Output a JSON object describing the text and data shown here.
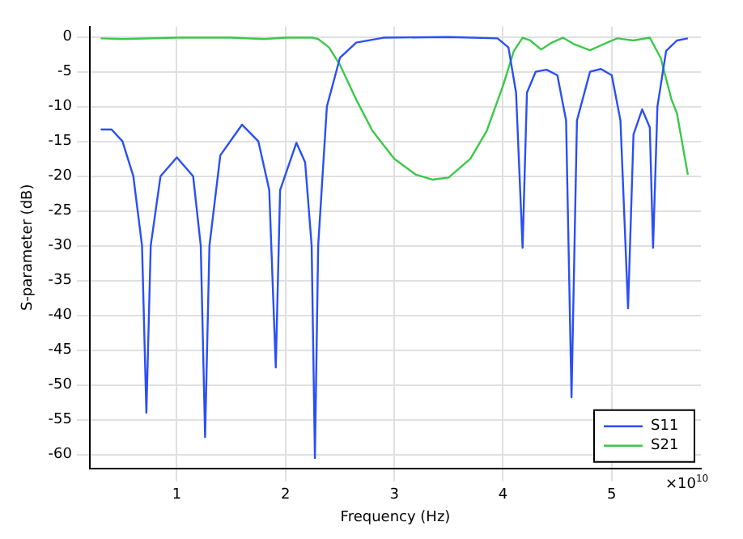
{
  "chart_data": {
    "type": "line",
    "xlabel": "Frequency (Hz)",
    "ylabel": "S-parameter (dB)",
    "annotations": [
      "×10$^{10}$"
    ],
    "xlim": [
      0.2,
      5.82
    ],
    "xticks": [
      1,
      2,
      3,
      4,
      5
    ],
    "ylim": [
      -62,
      1.5
    ],
    "yticks": [
      0,
      -5,
      -10,
      -15,
      -20,
      -25,
      -30,
      -35,
      -40,
      -45,
      -50,
      -55,
      -60
    ],
    "grid": true,
    "legend": "bottom right",
    "marker": "none",
    "line_style": "solid",
    "series": [
      {
        "name": "S11",
        "color": "#2a4ff5",
        "x": [
          0.3,
          0.4,
          0.5,
          0.6,
          0.68,
          0.72,
          0.76,
          0.85,
          1.0,
          1.15,
          1.22,
          1.26,
          1.3,
          1.4,
          1.6,
          1.75,
          1.85,
          1.91,
          1.95,
          2.1,
          2.18,
          2.24,
          2.27,
          2.3,
          2.38,
          2.5,
          2.65,
          2.9,
          3.5,
          3.95,
          4.05,
          4.12,
          4.18,
          4.22,
          4.3,
          4.4,
          4.5,
          4.58,
          4.63,
          4.68,
          4.8,
          4.9,
          5.0,
          5.08,
          5.15,
          5.2,
          5.28,
          5.35,
          5.38,
          5.42,
          5.5,
          5.6,
          5.7
        ],
        "values": [
          -13.3,
          -13.3,
          -15,
          -20,
          -30,
          -54,
          -30,
          -20,
          -17.3,
          -20,
          -30,
          -57.5,
          -30,
          -17,
          -12.6,
          -15,
          -22,
          -47.5,
          -22,
          -15.2,
          -18,
          -30,
          -60.5,
          -30,
          -10,
          -3,
          -0.8,
          -0.1,
          0,
          -0.2,
          -1.5,
          -8,
          -30.3,
          -8,
          -5,
          -4.7,
          -5.5,
          -12,
          -51.8,
          -12,
          -5,
          -4.6,
          -5.5,
          -12,
          -39,
          -14,
          -10.4,
          -13,
          -30.3,
          -10,
          -2,
          -0.5,
          -0.2
        ]
      },
      {
        "name": "S21",
        "color": "#3cc84a",
        "x": [
          0.3,
          0.5,
          1.0,
          1.5,
          1.8,
          2.0,
          2.25,
          2.3,
          2.4,
          2.5,
          2.65,
          2.8,
          3.0,
          3.2,
          3.35,
          3.5,
          3.7,
          3.85,
          4.0,
          4.1,
          4.18,
          4.25,
          4.35,
          4.45,
          4.55,
          4.65,
          4.8,
          4.9,
          5.05,
          5.2,
          5.35,
          5.45,
          5.55,
          5.6,
          5.7
        ],
        "values": [
          -0.2,
          -0.3,
          -0.1,
          -0.1,
          -0.3,
          -0.1,
          -0.1,
          -0.3,
          -1.5,
          -4,
          -9,
          -13.5,
          -17.5,
          -19.8,
          -20.5,
          -20.2,
          -17.5,
          -13.5,
          -7,
          -2,
          -0.1,
          -0.5,
          -1.8,
          -0.8,
          -0.1,
          -1,
          -1.9,
          -1.2,
          -0.2,
          -0.5,
          -0.1,
          -3,
          -9,
          -11,
          -19.8
        ]
      }
    ]
  }
}
